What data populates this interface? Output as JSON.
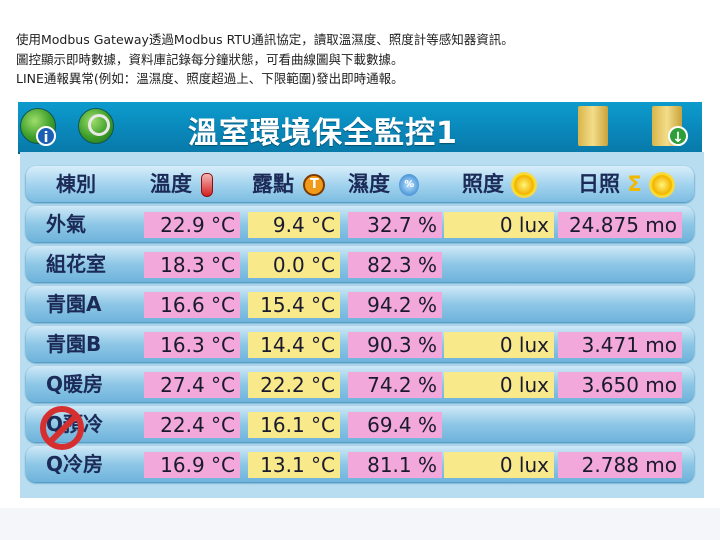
{
  "intro_lines": [
    "使用Modbus Gateway透過Modbus RTU通訊協定，讀取溫濕度、照度計等感知器資訊。",
    "圖控顯示即時數據，資料庫記錄每分鐘狀態，可看曲線圖與下載數據。",
    "LINE通報異常(例如：溫濕度、照度超過上、下限範圍)發出即時通報。"
  ],
  "header": {
    "title": "溫室環境保全監控1",
    "info_badge": "i"
  },
  "table": {
    "columns": [
      "棟別",
      "溫度",
      "露點",
      "濕度",
      "照度",
      "日照"
    ],
    "humidity_icon_text": "%",
    "dew_icon_text": "T",
    "sunshine_sigma": "Σ",
    "rows": [
      {
        "name": "外氣",
        "temp": "22.9 °C",
        "dew": "9.4 °C",
        "hum": "32.7 %",
        "lux": "0 lux",
        "sun": "24.875 mo"
      },
      {
        "name": "組花室",
        "temp": "18.3 °C",
        "dew": "0.0 °C",
        "hum": "82.3 %",
        "lux": "",
        "sun": ""
      },
      {
        "name": "青園A",
        "temp": "16.6 °C",
        "dew": "15.4 °C",
        "hum": "94.2 %",
        "lux": "",
        "sun": ""
      },
      {
        "name": "青園B",
        "temp": "16.3 °C",
        "dew": "14.4 °C",
        "hum": "90.3 %",
        "lux": "0 lux",
        "sun": "3.471 mo"
      },
      {
        "name": "Q暖房",
        "temp": "27.4 °C",
        "dew": "22.2 °C",
        "hum": "74.2 %",
        "lux": "0 lux",
        "sun": "3.650 mo"
      },
      {
        "name": "Q預冷",
        "temp": "22.4 °C",
        "dew": "16.1 °C",
        "hum": "69.4 %",
        "lux": "",
        "sun": ""
      },
      {
        "name": "Q冷房",
        "temp": "16.9 °C",
        "dew": "13.1 °C",
        "hum": "81.1 %",
        "lux": "0 lux",
        "sun": "2.788 mo"
      }
    ]
  },
  "colors": {
    "header_blue": "#0a86b9",
    "temp_cell": "#f2a8da",
    "dew_cell": "#f8e98a",
    "row_blue": "#8ec7e6"
  }
}
